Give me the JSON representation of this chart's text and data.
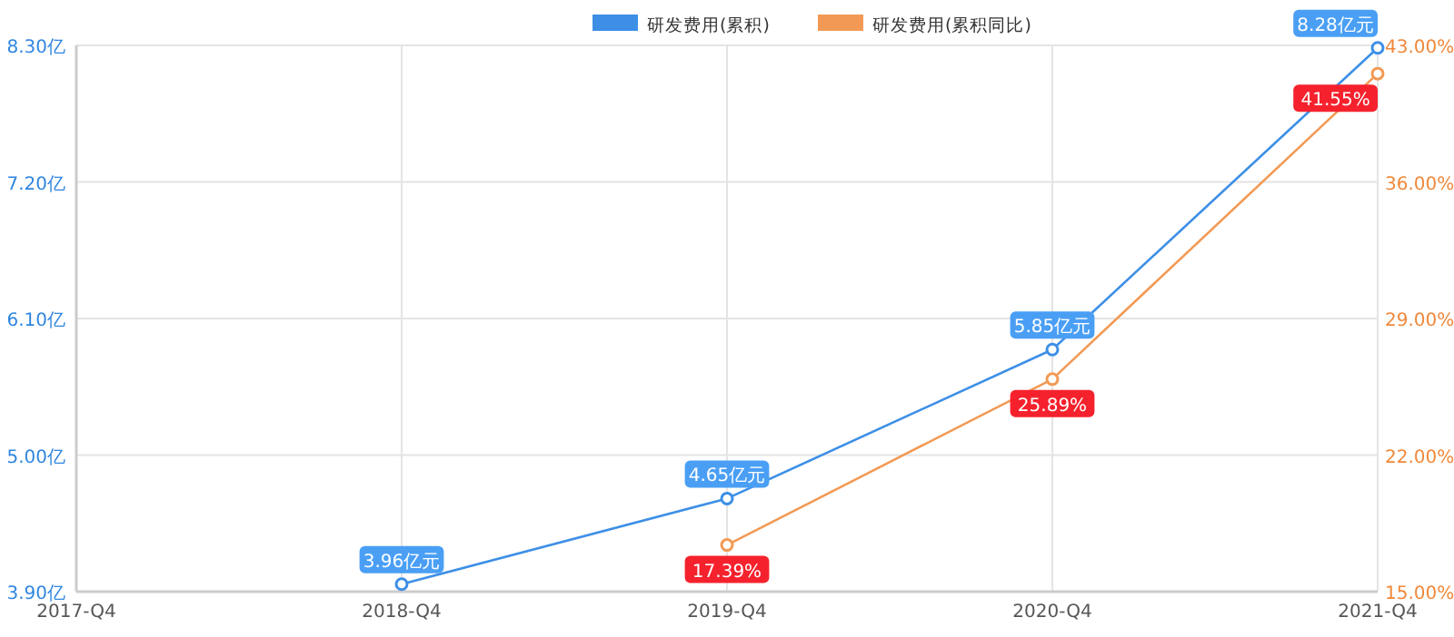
{
  "chart_data": {
    "type": "line",
    "categories": [
      "2017-Q4",
      "2018-Q4",
      "2019-Q4",
      "2020-Q4",
      "2021-Q4"
    ],
    "series": [
      {
        "name": "研发费用(累积)",
        "color": "#3d8fe6",
        "values": [
          null,
          3.96,
          4.65,
          5.85,
          8.28
        ],
        "value_labels": [
          null,
          "3.96亿元",
          "4.65亿元",
          "5.85亿元",
          "8.28亿元"
        ]
      },
      {
        "name": "研发费用(累积同比)",
        "color": "#f29a55",
        "axis": "y2",
        "values": [
          null,
          null,
          17.39,
          25.89,
          41.55
        ],
        "value_labels": [
          null,
          null,
          "17.39%",
          "25.89%",
          "41.55%"
        ]
      }
    ],
    "ylim": [
      3.9,
      8.3
    ],
    "yticks": [
      {
        "value": 3.9,
        "label": "3.90亿"
      },
      {
        "value": 5.0,
        "label": "5.00亿"
      },
      {
        "value": 6.1,
        "label": "6.10亿"
      },
      {
        "value": 7.2,
        "label": "7.20亿"
      },
      {
        "value": 8.3,
        "label": "8.30亿"
      }
    ],
    "y2lim": [
      15,
      43
    ],
    "y2ticks": [
      {
        "value": 15,
        "label": "15.00%"
      },
      {
        "value": 22,
        "label": "22.00%"
      },
      {
        "value": 29,
        "label": "29.00%"
      },
      {
        "value": 36,
        "label": "36.00%"
      },
      {
        "value": 43,
        "label": "43.00%"
      }
    ],
    "grid": true,
    "legend": "top",
    "marker": "circle",
    "line_style": "solid"
  }
}
